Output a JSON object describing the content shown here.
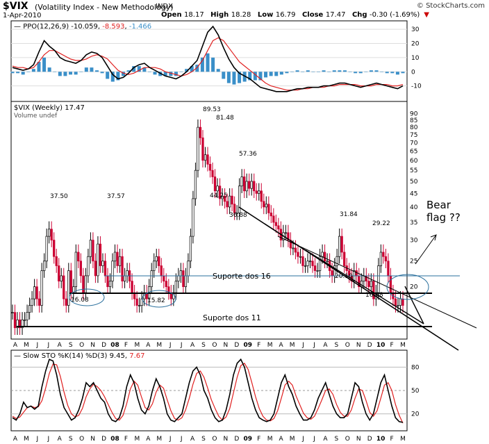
{
  "header": {
    "symbol": "$VIX",
    "name": "(Volatility Index - New Methodology)",
    "exchange": "INDX",
    "site": "© StockCharts.com",
    "date": "1-Apr-2010",
    "open_label": "Open",
    "open": "18.17",
    "high_label": "High",
    "high": "18.28",
    "low_label": "Low",
    "low": "16.79",
    "close_label": "Close",
    "close": "17.47",
    "chg_label": "Chg",
    "chg": "-0.30 (-1.69%)",
    "down_arrow": "▼"
  },
  "colors": {
    "up": "#000000",
    "down": "#cc0033",
    "ppo_line": "#000000",
    "ppo_signal": "#e02020",
    "histogram": "#3a8fc8",
    "sto_k": "#000000",
    "sto_d": "#e02020",
    "panel_border": "#000000",
    "grid": "#d8d8d8"
  },
  "chart_data": [
    {
      "type": "line",
      "panel": "ppo",
      "label": "PPO(12,26,9)",
      "values_text": [
        "-10.059",
        "-8.593",
        "-1.466"
      ],
      "ylim": [
        -20,
        35
      ],
      "yticks": [
        30,
        20,
        10,
        0,
        -10
      ],
      "series": [
        {
          "name": "PPO",
          "color": "#000000",
          "values": [
            3,
            2,
            1,
            2,
            5,
            14,
            22,
            18,
            15,
            10,
            8,
            7,
            6,
            8,
            12,
            14,
            13,
            10,
            4,
            -2,
            -5,
            -4,
            -1,
            3,
            5,
            6,
            3,
            1,
            -1,
            -3,
            -4,
            -5,
            -3,
            0,
            4,
            8,
            18,
            28,
            32,
            26,
            17,
            9,
            3,
            -1,
            -3,
            -5,
            -8,
            -11,
            -12,
            -13,
            -14,
            -14,
            -14,
            -13,
            -12,
            -12,
            -11,
            -11,
            -11,
            -10,
            -10,
            -9,
            -8,
            -8,
            -9,
            -10,
            -11,
            -10,
            -9,
            -8,
            -9,
            -10,
            -11,
            -12,
            -10
          ]
        },
        {
          "name": "Signal",
          "color": "#e02020",
          "values": [
            4,
            3,
            3,
            2,
            3,
            7,
            12,
            15,
            15,
            13,
            11,
            9,
            8,
            8,
            9,
            11,
            12,
            11,
            9,
            5,
            1,
            -1,
            -2,
            -1,
            1,
            3,
            3,
            3,
            2,
            0,
            -1,
            -2,
            -3,
            -2,
            0,
            3,
            8,
            15,
            22,
            24,
            22,
            17,
            12,
            7,
            4,
            1,
            -2,
            -5,
            -8,
            -10,
            -11,
            -12,
            -13,
            -13,
            -13,
            -12,
            -12,
            -11,
            -11,
            -11,
            -10,
            -10,
            -9,
            -9,
            -9,
            -9,
            -10,
            -10,
            -10,
            -9,
            -9,
            -9,
            -10,
            -10,
            -9
          ]
        },
        {
          "name": "Histogram",
          "color": "#3a8fc8",
          "values": [
            -1,
            -1,
            -2,
            0,
            2,
            7,
            10,
            3,
            0,
            -3,
            -3,
            -2,
            -2,
            0,
            3,
            3,
            1,
            -1,
            -5,
            -7,
            -6,
            -3,
            1,
            4,
            4,
            3,
            0,
            -2,
            -3,
            -3,
            -3,
            -3,
            0,
            2,
            4,
            5,
            10,
            13,
            10,
            2,
            -5,
            -8,
            -9,
            -8,
            -7,
            -6,
            -6,
            -6,
            -4,
            -3,
            -3,
            -2,
            -1,
            0,
            1,
            0,
            1,
            0,
            0,
            1,
            0,
            1,
            1,
            1,
            0,
            -1,
            -1,
            0,
            1,
            1,
            0,
            -1,
            -1,
            -2,
            -1
          ]
        }
      ]
    },
    {
      "type": "candlestick",
      "panel": "price",
      "label": "$VIX (Weekly) 17.47",
      "volume_label": "Volume undef",
      "scale": "log",
      "ylim": [
        13,
        92
      ],
      "yticks": [
        90,
        85,
        80,
        75,
        70,
        65,
        60,
        55,
        50,
        45,
        40,
        35,
        30,
        25,
        20
      ],
      "x_labels": [
        "A",
        "M",
        "J",
        "J",
        "A",
        "S",
        "O",
        "N",
        "D",
        "08",
        "F",
        "M",
        "A",
        "M",
        "J",
        "J",
        "A",
        "S",
        "O",
        "N",
        "D",
        "09",
        "F",
        "M",
        "A",
        "M",
        "J",
        "J",
        "A",
        "S",
        "O",
        "N",
        "D",
        "10",
        "F",
        "M"
      ],
      "closes": [
        16,
        14,
        15,
        14,
        15,
        15,
        16,
        17,
        18,
        20,
        18,
        17,
        23,
        25,
        31,
        33,
        30,
        26,
        24,
        21,
        22,
        18,
        17,
        23,
        19,
        20,
        27,
        25,
        22,
        19,
        22,
        26,
        30,
        25,
        22,
        29,
        24,
        25,
        22,
        20,
        21,
        25,
        27,
        24,
        26,
        21,
        22,
        23,
        21,
        19,
        18,
        17,
        17,
        18,
        19,
        18,
        20,
        23,
        25,
        26,
        24,
        22,
        21,
        20,
        19,
        18,
        19,
        21,
        22,
        23,
        20,
        22,
        25,
        31,
        43,
        55,
        80,
        73,
        60,
        63,
        58,
        55,
        52,
        46,
        48,
        43,
        44,
        42,
        40,
        44,
        41,
        38,
        38,
        48,
        52,
        46,
        50,
        47,
        50,
        46,
        45,
        46,
        42,
        40,
        41,
        38,
        37,
        35,
        34,
        33,
        30,
        32,
        32,
        30,
        28,
        28,
        27,
        26,
        26,
        24,
        24,
        25,
        25,
        24,
        23,
        23,
        26,
        27,
        25,
        25,
        23,
        22,
        24,
        26,
        31,
        27,
        24,
        23,
        22,
        21,
        23,
        22,
        20,
        21,
        22,
        21,
        20,
        21,
        18,
        19,
        24,
        27,
        26,
        25,
        22,
        19,
        18,
        17,
        17,
        18,
        17
      ],
      "peak_labels": [
        "37.50",
        "16.08",
        "37.57",
        "15.82",
        "89.53",
        "81.48",
        "44.25",
        "57.36",
        "36.88",
        "31.84",
        "20.10",
        "29.22",
        "16.48"
      ]
    },
    {
      "type": "line",
      "panel": "stochastic",
      "label": "Slow STO %K(14) %D(3)",
      "values_text": [
        "9.45",
        "7.67"
      ],
      "ylim": [
        0,
        100
      ],
      "yticks": [
        80,
        50,
        20
      ],
      "series": [
        {
          "name": "%K",
          "color": "#000000",
          "values": [
            15,
            12,
            20,
            35,
            28,
            30,
            26,
            30,
            55,
            75,
            90,
            88,
            70,
            45,
            28,
            20,
            12,
            15,
            25,
            40,
            60,
            55,
            60,
            50,
            40,
            35,
            20,
            12,
            10,
            15,
            30,
            55,
            70,
            60,
            40,
            25,
            20,
            30,
            50,
            65,
            55,
            40,
            20,
            12,
            10,
            15,
            20,
            40,
            60,
            75,
            80,
            70,
            50,
            40,
            25,
            15,
            10,
            12,
            25,
            45,
            70,
            85,
            90,
            80,
            60,
            40,
            25,
            15,
            12,
            10,
            12,
            20,
            40,
            60,
            70,
            55,
            45,
            30,
            20,
            12,
            12,
            15,
            25,
            40,
            50,
            60,
            45,
            30,
            20,
            15,
            15,
            20,
            40,
            60,
            55,
            35,
            20,
            12,
            20,
            40,
            60,
            70,
            50,
            30,
            15,
            10,
            9
          ]
        },
        {
          "name": "%D",
          "color": "#e02020",
          "values": [
            17,
            14,
            16,
            22,
            28,
            30,
            28,
            29,
            37,
            53,
            72,
            84,
            83,
            68,
            48,
            31,
            20,
            16,
            18,
            27,
            42,
            52,
            58,
            55,
            50,
            42,
            32,
            22,
            14,
            12,
            18,
            33,
            52,
            62,
            57,
            42,
            28,
            25,
            33,
            48,
            57,
            53,
            38,
            24,
            14,
            12,
            15,
            25,
            40,
            58,
            72,
            75,
            67,
            53,
            38,
            27,
            17,
            12,
            16,
            27,
            47,
            67,
            82,
            85,
            77,
            60,
            42,
            27,
            17,
            12,
            11,
            14,
            24,
            40,
            57,
            62,
            57,
            43,
            32,
            21,
            15,
            13,
            17,
            27,
            38,
            50,
            52,
            45,
            32,
            22,
            17,
            17,
            25,
            40,
            52,
            50,
            37,
            22,
            17,
            24,
            40,
            57,
            60,
            50,
            32,
            18,
            8
          ]
        }
      ]
    }
  ],
  "panels": {
    "ppo_title": "PPO(12,26,9)",
    "ppo_v1": "-10.059",
    "ppo_v2": "-8.593",
    "ppo_v3": "-1.466",
    "price_title": "$VIX (Weekly) 17.47",
    "price_volume": "Volume undef",
    "sto_title": "Slow STO %K(14) %D(3)",
    "sto_v1": "9.45",
    "sto_v2": "7.67"
  },
  "annotations": {
    "bear_line1": "Bear",
    "bear_line2": "flag ??",
    "suporte16": "Suporte dos 16",
    "suporte11": "Suporte dos 11",
    "label_1608": "16.08",
    "label_1582": "15.82",
    "label_3750": "37.50",
    "label_3757": "37.57",
    "label_8953": "89.53",
    "label_8148": "81.48",
    "label_4425": "44.25",
    "label_5736": "57.36",
    "label_3688": "36.88",
    "label_3184": "31.84",
    "label_2010": "20.10",
    "label_2922": "29.22",
    "label_1648": "16.48"
  },
  "x_axis": [
    "A",
    "M",
    "J",
    "J",
    "A",
    "S",
    "O",
    "N",
    "D",
    "08",
    "F",
    "M",
    "A",
    "M",
    "J",
    "J",
    "A",
    "S",
    "O",
    "N",
    "D",
    "09",
    "F",
    "M",
    "A",
    "M",
    "J",
    "J",
    "A",
    "S",
    "O",
    "N",
    "D",
    "10",
    "F",
    "M"
  ]
}
